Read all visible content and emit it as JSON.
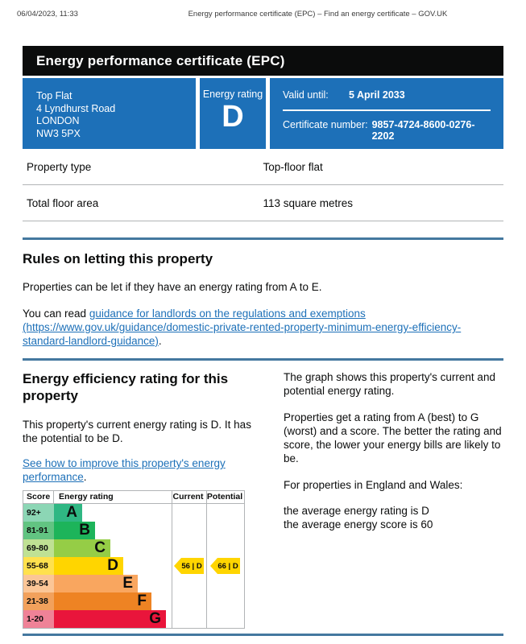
{
  "print_header": {
    "datetime": "06/04/2023, 11:33",
    "title": "Energy performance certificate (EPC) – Find an energy certificate – GOV.UK"
  },
  "banner": {
    "title": "Energy performance certificate (EPC)"
  },
  "summary": {
    "address_lines": [
      "Top Flat",
      "4 Lyndhurst Road",
      "LONDON",
      "NW3 5PX"
    ],
    "energy_rating_label": "Energy rating",
    "energy_rating_value": "D",
    "valid_until_label": "Valid until:",
    "valid_until_value": "5 April 2033",
    "certificate_number_label": "Certificate number:",
    "certificate_number_value": "9857-4724-8600-0276-2202"
  },
  "property_details": {
    "rows": [
      {
        "label": "Property type",
        "value": "Top-floor flat"
      },
      {
        "label": "Total floor area",
        "value": "113 square metres"
      }
    ]
  },
  "rules_section": {
    "heading": "Rules on letting this property",
    "paragraph1": "Properties can be let if they have an energy rating from A to E.",
    "link_prefix": "You can read ",
    "link_text": "guidance for landlords on the regulations and exemptions (https://www.gov.uk/guidance/domestic-private-rented-property-minimum-energy-efficiency-standard-landlord-guidance)",
    "link_suffix": "."
  },
  "rating_section": {
    "heading": "Energy efficiency rating for this property",
    "paragraph": "This property's current energy rating is D. It has the potential to be D.",
    "improve_link_text": "See how to improve this property's energy performance",
    "improve_link_suffix": ".",
    "right_column": {
      "paragraph1": "The graph shows this property's current and potential energy rating.",
      "paragraph2": "Properties get a rating from A (best) to G (worst) and a score. The better the rating and score, the lower your energy bills are likely to be.",
      "paragraph3": "For properties in England and Wales:",
      "average_rating_line": "the average energy rating is D",
      "average_score_line": "the average energy score is 60"
    }
  },
  "chart_data": {
    "type": "bar",
    "title": "Energy efficiency rating chart",
    "columns": [
      "Score",
      "Energy rating",
      "Current",
      "Potential"
    ],
    "bands": [
      {
        "letter": "A",
        "score_range": "92+",
        "width_pct": 24,
        "bar_color": "#2fb783",
        "score_cell_color": "#8cd6b5"
      },
      {
        "letter": "B",
        "score_range": "81-91",
        "width_pct": 35,
        "bar_color": "#1db45a",
        "score_cell_color": "#62c482"
      },
      {
        "letter": "C",
        "score_range": "69-80",
        "width_pct": 48,
        "bar_color": "#95cd46",
        "score_cell_color": "#bfe194"
      },
      {
        "letter": "D",
        "score_range": "55-68",
        "width_pct": 59,
        "bar_color": "#ffd500",
        "score_cell_color": "#ffe14d"
      },
      {
        "letter": "E",
        "score_range": "39-54",
        "width_pct": 71,
        "bar_color": "#f9a65f",
        "score_cell_color": "#fbc697"
      },
      {
        "letter": "F",
        "score_range": "21-38",
        "width_pct": 83,
        "bar_color": "#ee8323",
        "score_cell_color": "#f2a15c"
      },
      {
        "letter": "G",
        "score_range": "1-20",
        "width_pct": 95,
        "bar_color": "#e9153b",
        "score_cell_color": "#ef8297"
      }
    ],
    "current": {
      "score": 56,
      "band": "D",
      "label": "56 | D",
      "row_index": 3
    },
    "potential": {
      "score": 66,
      "band": "D",
      "label": "66 | D",
      "row_index": 3
    },
    "arrow_color": "#ffd500"
  },
  "colors": {
    "govuk_blue": "#1d70b8",
    "banner_bg": "#0b0c0c",
    "section_rule_blue": "#44789f",
    "border_gray": "#b1b4b6",
    "link_blue": "#1d70b8"
  }
}
